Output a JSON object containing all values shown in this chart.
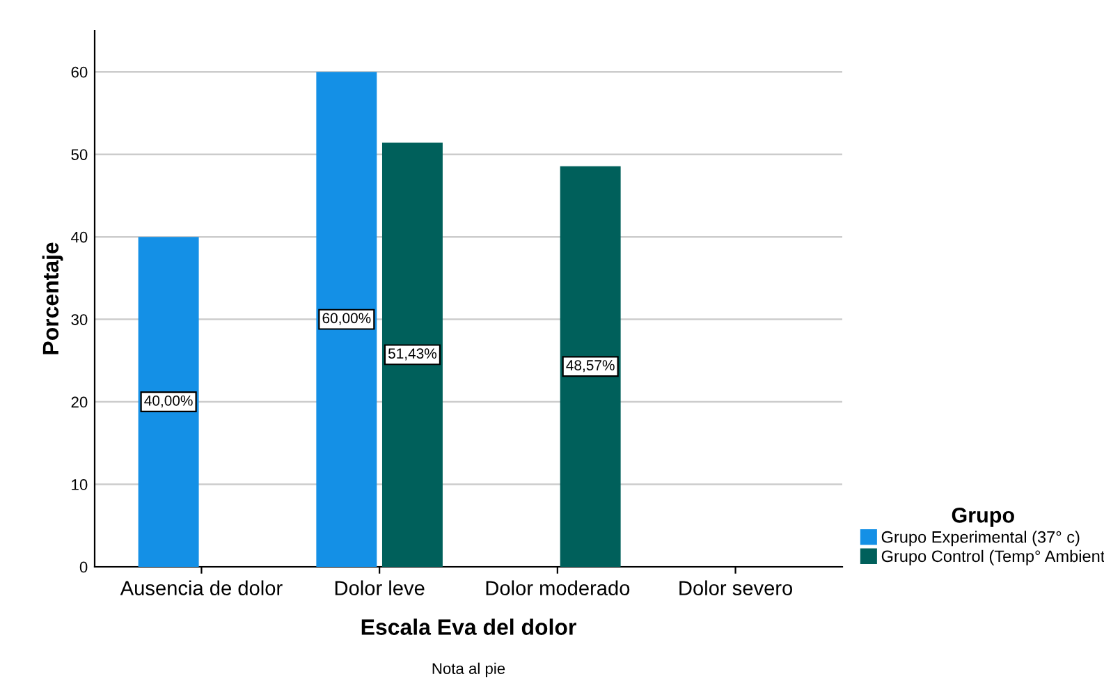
{
  "chart_data": {
    "type": "bar",
    "xlabel": "Escala Eva del dolor",
    "ylabel": "Porcentaje",
    "legend_title": "Grupo",
    "categories": [
      "Ausencia de dolor",
      "Dolor leve",
      "Dolor moderado",
      "Dolor severo"
    ],
    "series": [
      {
        "name": "Grupo Experimental (37° c)",
        "color": "#1490e6",
        "values": [
          40,
          60,
          null,
          null
        ],
        "value_labels": [
          "40,00%",
          "60,00%",
          null,
          null
        ]
      },
      {
        "name": "Grupo Control (Temp° Ambient",
        "color": "#00605b",
        "values": [
          null,
          51.43,
          48.57,
          null
        ],
        "value_labels": [
          null,
          "51,43%",
          "48,57%",
          null
        ]
      }
    ],
    "ylim": [
      0,
      65
    ],
    "yticks": [
      0,
      10,
      20,
      30,
      40,
      50,
      60
    ],
    "grid": "y",
    "legend": "right",
    "annotations": [
      "Nota al pie"
    ]
  }
}
